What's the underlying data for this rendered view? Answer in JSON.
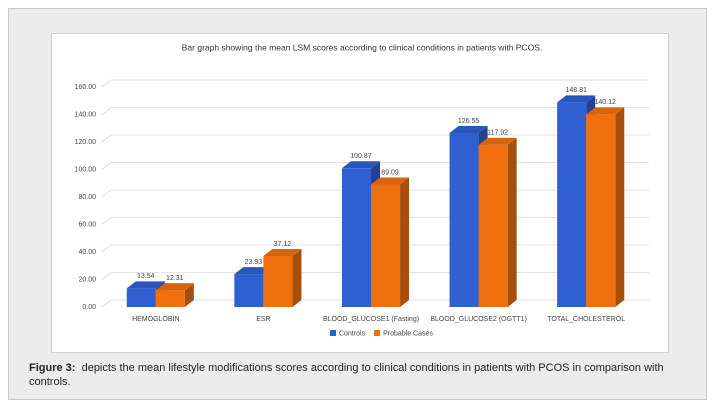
{
  "chart_data": {
    "type": "bar3d",
    "title": "Bar graph showing the mean LSM scores according to clinical conditions in patients with PCOS.",
    "categories": [
      "HEMOGLOBIN",
      "ESR",
      "BLOOD_GLUCOSE1 (Fasting)",
      "BLOOD_GLUCOSE2 (OGTT1)",
      "TOTAL_CHOLESTEROL"
    ],
    "series": [
      {
        "name": "Controls",
        "color": "#2f5fd0",
        "values": [
          13.54,
          23.93,
          100.87,
          126.55,
          148.81
        ]
      },
      {
        "name": "Probable Cases",
        "color": "#f07010",
        "values": [
          12.31,
          37.12,
          89.09,
          117.92,
          140.12
        ]
      }
    ],
    "ylim": [
      0,
      160
    ],
    "yticks": [
      {
        "value": 0,
        "label": "0.00"
      },
      {
        "value": 20,
        "label": "20.00"
      },
      {
        "value": 40,
        "label": "40.00"
      },
      {
        "value": 60,
        "label": "60.00"
      },
      {
        "value": 80,
        "label": "80.00"
      },
      {
        "value": 100,
        "label": "100.00"
      },
      {
        "value": 120,
        "label": "120.00"
      },
      {
        "value": 140,
        "label": "140.00"
      },
      {
        "value": 160,
        "label": "160.00"
      }
    ],
    "grid": true,
    "legend": "bottom"
  },
  "caption": {
    "label": "Figure 3:",
    "text": "depicts the mean lifestyle modifications scores according to clinical conditions in patients with PCOS in comparison with controls."
  }
}
